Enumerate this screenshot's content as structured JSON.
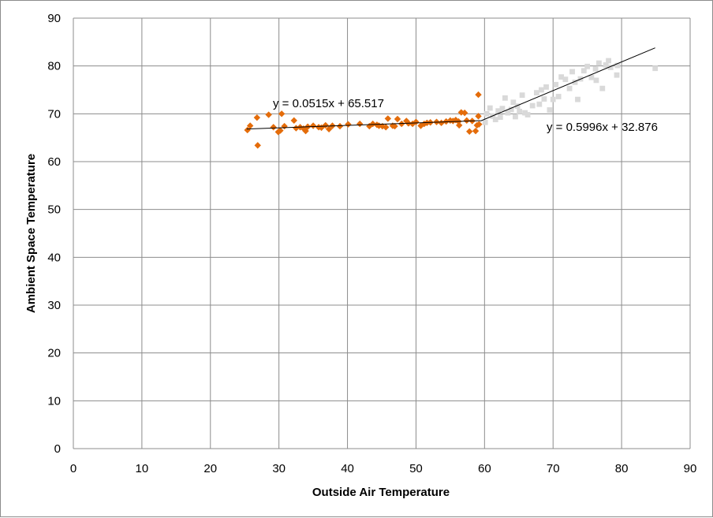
{
  "chart_data": {
    "type": "scatter",
    "xlabel": "Outside Air Temperature",
    "ylabel": "Ambient Space Temperature",
    "xlim": [
      0,
      90
    ],
    "ylim": [
      0,
      90
    ],
    "xticks": [
      "0",
      "10",
      "20",
      "30",
      "40",
      "50",
      "60",
      "70",
      "80",
      "90"
    ],
    "yticks": [
      "0",
      "10",
      "20",
      "30",
      "40",
      "50",
      "60",
      "70",
      "80",
      "90"
    ],
    "grid": true,
    "legend": "none",
    "series": [
      {
        "color": "#e46c0a",
        "marker": "diamond",
        "points": [
          [
            25.4,
            66.6
          ],
          [
            25.8,
            67.5
          ],
          [
            26.8,
            69.2
          ],
          [
            26.9,
            63.4
          ],
          [
            28.5,
            69.8
          ],
          [
            29.2,
            67.2
          ],
          [
            29.9,
            66.2
          ],
          [
            30.2,
            66.5
          ],
          [
            30.4,
            70.0
          ],
          [
            30.8,
            67.4
          ],
          [
            32.2,
            68.6
          ],
          [
            32.5,
            67.0
          ],
          [
            33.1,
            67.2
          ],
          [
            33.6,
            66.9
          ],
          [
            33.9,
            66.4
          ],
          [
            34.2,
            67.3
          ],
          [
            35.0,
            67.5
          ],
          [
            35.8,
            67.2
          ],
          [
            36.2,
            67.1
          ],
          [
            36.8,
            67.6
          ],
          [
            37.3,
            66.8
          ],
          [
            37.8,
            67.5
          ],
          [
            38.9,
            67.4
          ],
          [
            40.1,
            67.8
          ],
          [
            41.8,
            67.9
          ],
          [
            43.2,
            67.4
          ],
          [
            43.7,
            67.9
          ],
          [
            44.3,
            67.7
          ],
          [
            44.6,
            67.5
          ],
          [
            45.1,
            67.4
          ],
          [
            45.6,
            67.2
          ],
          [
            45.9,
            69.0
          ],
          [
            46.6,
            67.5
          ],
          [
            46.9,
            67.4
          ],
          [
            47.3,
            68.9
          ],
          [
            47.9,
            67.9
          ],
          [
            48.6,
            68.5
          ],
          [
            48.9,
            68.0
          ],
          [
            49.5,
            67.9
          ],
          [
            50.0,
            68.3
          ],
          [
            50.7,
            67.5
          ],
          [
            51.2,
            67.9
          ],
          [
            51.6,
            68.1
          ],
          [
            52.1,
            68.2
          ],
          [
            53.0,
            68.3
          ],
          [
            53.7,
            68.1
          ],
          [
            54.4,
            68.4
          ],
          [
            55.0,
            68.6
          ],
          [
            55.4,
            68.5
          ],
          [
            55.8,
            68.7
          ],
          [
            56.2,
            68.4
          ],
          [
            56.3,
            67.6
          ],
          [
            56.6,
            70.3
          ],
          [
            57.1,
            70.2
          ],
          [
            57.4,
            68.6
          ],
          [
            57.8,
            66.3
          ],
          [
            58.2,
            68.5
          ],
          [
            58.7,
            66.4
          ],
          [
            58.9,
            67.6
          ],
          [
            59.1,
            69.5
          ],
          [
            59.1,
            74.0
          ],
          [
            59.2,
            67.8
          ]
        ],
        "trendline": {
          "equation": "y = 0.0515x + 65.517",
          "slope": 0.0515,
          "intercept": 65.517,
          "x_range": [
            25.3,
            59.4
          ]
        }
      },
      {
        "color": "#d9d9d9",
        "marker": "square",
        "points": [
          [
            60.1,
            68.2
          ],
          [
            60.3,
            70.0
          ],
          [
            60.8,
            71.2
          ],
          [
            61.2,
            69.5
          ],
          [
            61.6,
            68.8
          ],
          [
            62.0,
            70.6
          ],
          [
            62.3,
            69.3
          ],
          [
            62.6,
            71.1
          ],
          [
            63.0,
            73.3
          ],
          [
            63.4,
            70.2
          ],
          [
            63.9,
            70.9
          ],
          [
            64.2,
            72.4
          ],
          [
            64.5,
            69.4
          ],
          [
            64.8,
            71.6
          ],
          [
            65.1,
            70.5
          ],
          [
            65.5,
            73.9
          ],
          [
            65.9,
            70.2
          ],
          [
            66.3,
            69.8
          ],
          [
            67.0,
            71.7
          ],
          [
            67.6,
            74.4
          ],
          [
            68.0,
            72.0
          ],
          [
            68.3,
            75.0
          ],
          [
            68.7,
            73.1
          ],
          [
            69.0,
            75.6
          ],
          [
            69.5,
            70.8
          ],
          [
            70.0,
            73.0
          ],
          [
            70.4,
            76.1
          ],
          [
            70.8,
            73.6
          ],
          [
            71.2,
            77.7
          ],
          [
            71.8,
            77.2
          ],
          [
            72.4,
            75.3
          ],
          [
            72.8,
            78.8
          ],
          [
            73.2,
            76.6
          ],
          [
            73.6,
            73.0
          ],
          [
            74.0,
            77.3
          ],
          [
            74.5,
            79.0
          ],
          [
            75.0,
            79.9
          ],
          [
            75.6,
            77.6
          ],
          [
            76.2,
            79.4
          ],
          [
            76.7,
            80.6
          ],
          [
            77.2,
            75.3
          ],
          [
            77.7,
            80.2
          ],
          [
            78.4,
            79.7
          ],
          [
            79.4,
            80.1
          ],
          [
            84.9,
            79.5
          ],
          [
            79.3,
            78.1
          ],
          [
            78.1,
            81.1
          ],
          [
            76.3,
            77.0
          ]
        ],
        "trendline": {
          "equation": "y = 0.5996x + 32.876",
          "slope": 0.5996,
          "intercept": 32.876,
          "x_range": [
            59.4,
            84.9
          ]
        }
      }
    ]
  }
}
